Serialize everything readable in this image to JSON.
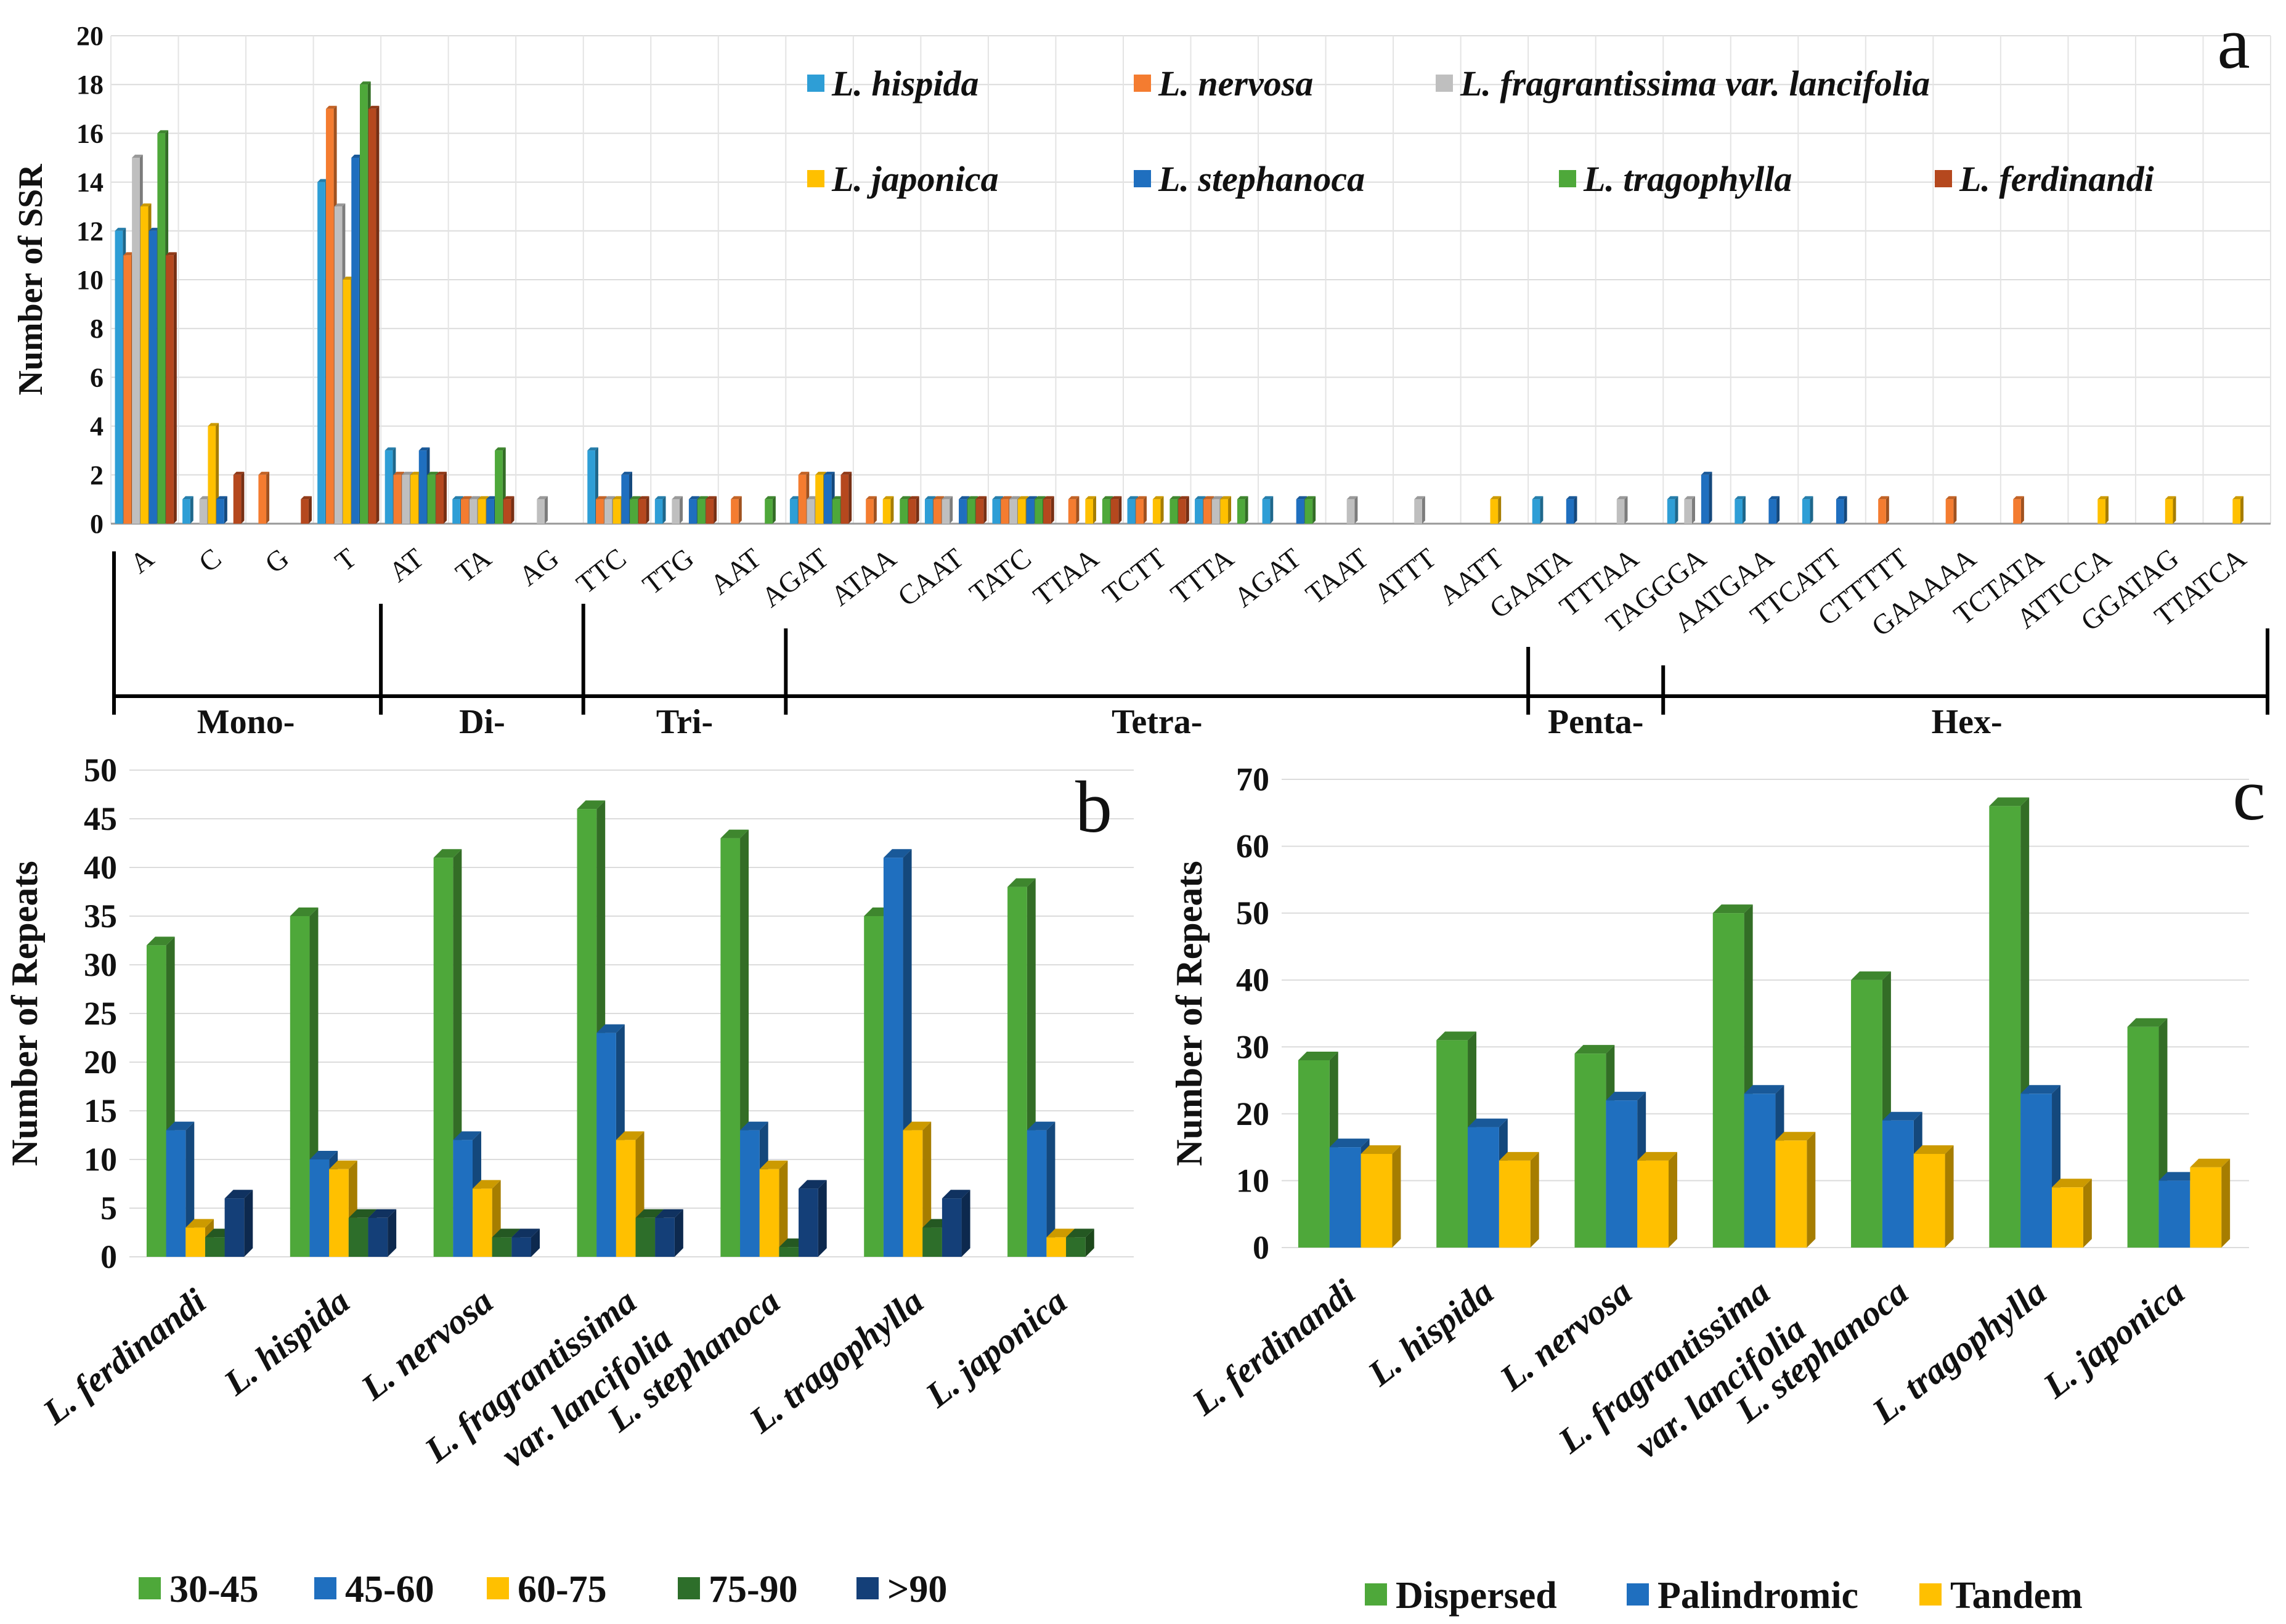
{
  "panels": {
    "a": {
      "letter": "a"
    },
    "b": {
      "letter": "b"
    },
    "c": {
      "letter": "c"
    }
  },
  "chart_data": [
    {
      "type": "bar",
      "panel": "a",
      "title": "",
      "ylabel": "Number of SSR",
      "xlabel": "",
      "ylim": [
        0,
        20
      ],
      "yticks": [
        0,
        2,
        4,
        6,
        8,
        10,
        12,
        14,
        16,
        18,
        20
      ],
      "categories": [
        "A",
        "C",
        "G",
        "T",
        "AT",
        "TA",
        "AG",
        "TTC",
        "TTG",
        "AAT",
        "AGAT",
        "ATAA",
        "CAAT",
        "TATC",
        "TTAA",
        "TCTT",
        "TTTA",
        "AGAT",
        "TAAT",
        "ATTT",
        "AATT",
        "GAATA",
        "TTTAA",
        "TAGGGA",
        "AATGAA",
        "TTCATT",
        "CTTTTT",
        "GAAAAA",
        "TCTATA",
        "ATTCCA",
        "GGATAG",
        "TTATCA"
      ],
      "groups": [
        {
          "label": "Mono-",
          "count": 4
        },
        {
          "label": "Di-",
          "count": 3
        },
        {
          "label": "Tri-",
          "count": 3
        },
        {
          "label": "Tetra-",
          "count": 11
        },
        {
          "label": "Penta-",
          "count": 2
        },
        {
          "label": "Hex-",
          "count": 9
        }
      ],
      "series": [
        {
          "name": "L. hispida",
          "color": "#2E9ED6",
          "values": [
            12,
            1,
            0,
            14,
            3,
            1,
            0,
            3,
            1,
            0,
            1,
            0,
            1,
            1,
            0,
            1,
            1,
            1,
            0,
            0,
            0,
            1,
            0,
            1,
            1,
            1,
            0,
            0,
            0,
            0,
            0,
            0
          ]
        },
        {
          "name": "L. nervosa",
          "color": "#F47C30",
          "values": [
            11,
            0,
            2,
            17,
            2,
            1,
            0,
            1,
            0,
            1,
            2,
            1,
            1,
            1,
            1,
            1,
            1,
            0,
            0,
            0,
            0,
            0,
            0,
            0,
            0,
            0,
            1,
            1,
            1,
            0,
            0,
            0
          ]
        },
        {
          "name": "L. fragrantissima var. lancifolia",
          "color": "#BFBFBF",
          "values": [
            15,
            1,
            0,
            13,
            2,
            1,
            1,
            1,
            1,
            0,
            1,
            0,
            1,
            1,
            0,
            0,
            1,
            0,
            1,
            1,
            0,
            0,
            1,
            1,
            0,
            0,
            0,
            0,
            0,
            0,
            0,
            0
          ]
        },
        {
          "name": "L. japonica",
          "color": "#FFC000",
          "values": [
            13,
            4,
            0,
            10,
            2,
            1,
            0,
            1,
            0,
            0,
            2,
            1,
            0,
            1,
            1,
            1,
            1,
            0,
            0,
            0,
            1,
            0,
            0,
            0,
            0,
            0,
            0,
            0,
            0,
            1,
            1,
            1
          ]
        },
        {
          "name": "L. stephanoca",
          "color": "#1F6FBF",
          "values": [
            12,
            1,
            0,
            15,
            3,
            1,
            0,
            2,
            1,
            0,
            2,
            0,
            1,
            1,
            0,
            0,
            0,
            1,
            0,
            0,
            0,
            1,
            0,
            2,
            1,
            1,
            0,
            0,
            0,
            0,
            0,
            0
          ]
        },
        {
          "name": "L. tragophylla",
          "color": "#4EA83A",
          "values": [
            16,
            0,
            0,
            18,
            2,
            3,
            0,
            1,
            1,
            1,
            1,
            1,
            1,
            1,
            1,
            1,
            1,
            1,
            0,
            0,
            0,
            0,
            0,
            0,
            0,
            0,
            0,
            0,
            0,
            0,
            0,
            0
          ]
        },
        {
          "name": "L. ferdinandi",
          "color": "#B5481E",
          "values": [
            11,
            2,
            1,
            17,
            2,
            1,
            0,
            1,
            1,
            0,
            2,
            1,
            1,
            1,
            1,
            1,
            0,
            0,
            0,
            0,
            0,
            0,
            0,
            0,
            0,
            0,
            0,
            0,
            0,
            0,
            0,
            0
          ]
        }
      ]
    },
    {
      "type": "bar",
      "panel": "b",
      "title": "",
      "ylabel": "Number of  Repeats",
      "xlabel": "",
      "ylim": [
        0,
        50
      ],
      "yticks": [
        0,
        5,
        10,
        15,
        20,
        25,
        30,
        35,
        40,
        45,
        50
      ],
      "categories": [
        "L. ferdinandi",
        "L. hispida",
        "L. nervosa",
        "L. fragrantissima\nvar. lancifolia",
        "L. stephanoca",
        "L. tragophylla",
        "L. japonica"
      ],
      "series": [
        {
          "name": "30-45",
          "color": "#4EA83A",
          "values": [
            32,
            35,
            41,
            46,
            43,
            35,
            38
          ]
        },
        {
          "name": "45-60",
          "color": "#1F6FBF",
          "values": [
            13,
            10,
            12,
            23,
            13,
            41,
            13
          ]
        },
        {
          "name": "60-75",
          "color": "#FFC000",
          "values": [
            3,
            9,
            7,
            12,
            9,
            13,
            2
          ]
        },
        {
          "name": "75-90",
          "color": "#2D6E2A",
          "values": [
            2,
            4,
            2,
            4,
            1,
            3,
            2
          ]
        },
        {
          "name": ">90",
          "color": "#143F78",
          "values": [
            6,
            4,
            2,
            4,
            7,
            6,
            0
          ]
        }
      ]
    },
    {
      "type": "bar",
      "panel": "c",
      "title": "",
      "ylabel": "Number of  Repeats",
      "xlabel": "",
      "ylim": [
        0,
        70
      ],
      "yticks": [
        0,
        10,
        20,
        30,
        40,
        50,
        60,
        70
      ],
      "categories": [
        "L. ferdinandi",
        "L. hispida",
        "L. nervosa",
        "L. fragrantissima\nvar. lancifolia",
        "L. stephanoca",
        "L. tragophylla",
        "L. japonica"
      ],
      "series": [
        {
          "name": "Dispersed",
          "color": "#4EA83A",
          "values": [
            28,
            31,
            29,
            50,
            40,
            66,
            33
          ]
        },
        {
          "name": "Palindromic",
          "color": "#1F6FBF",
          "values": [
            15,
            18,
            22,
            23,
            19,
            23,
            10
          ]
        },
        {
          "name": "Tandem",
          "color": "#FFC000",
          "values": [
            14,
            13,
            13,
            16,
            14,
            9,
            12
          ]
        }
      ]
    }
  ]
}
